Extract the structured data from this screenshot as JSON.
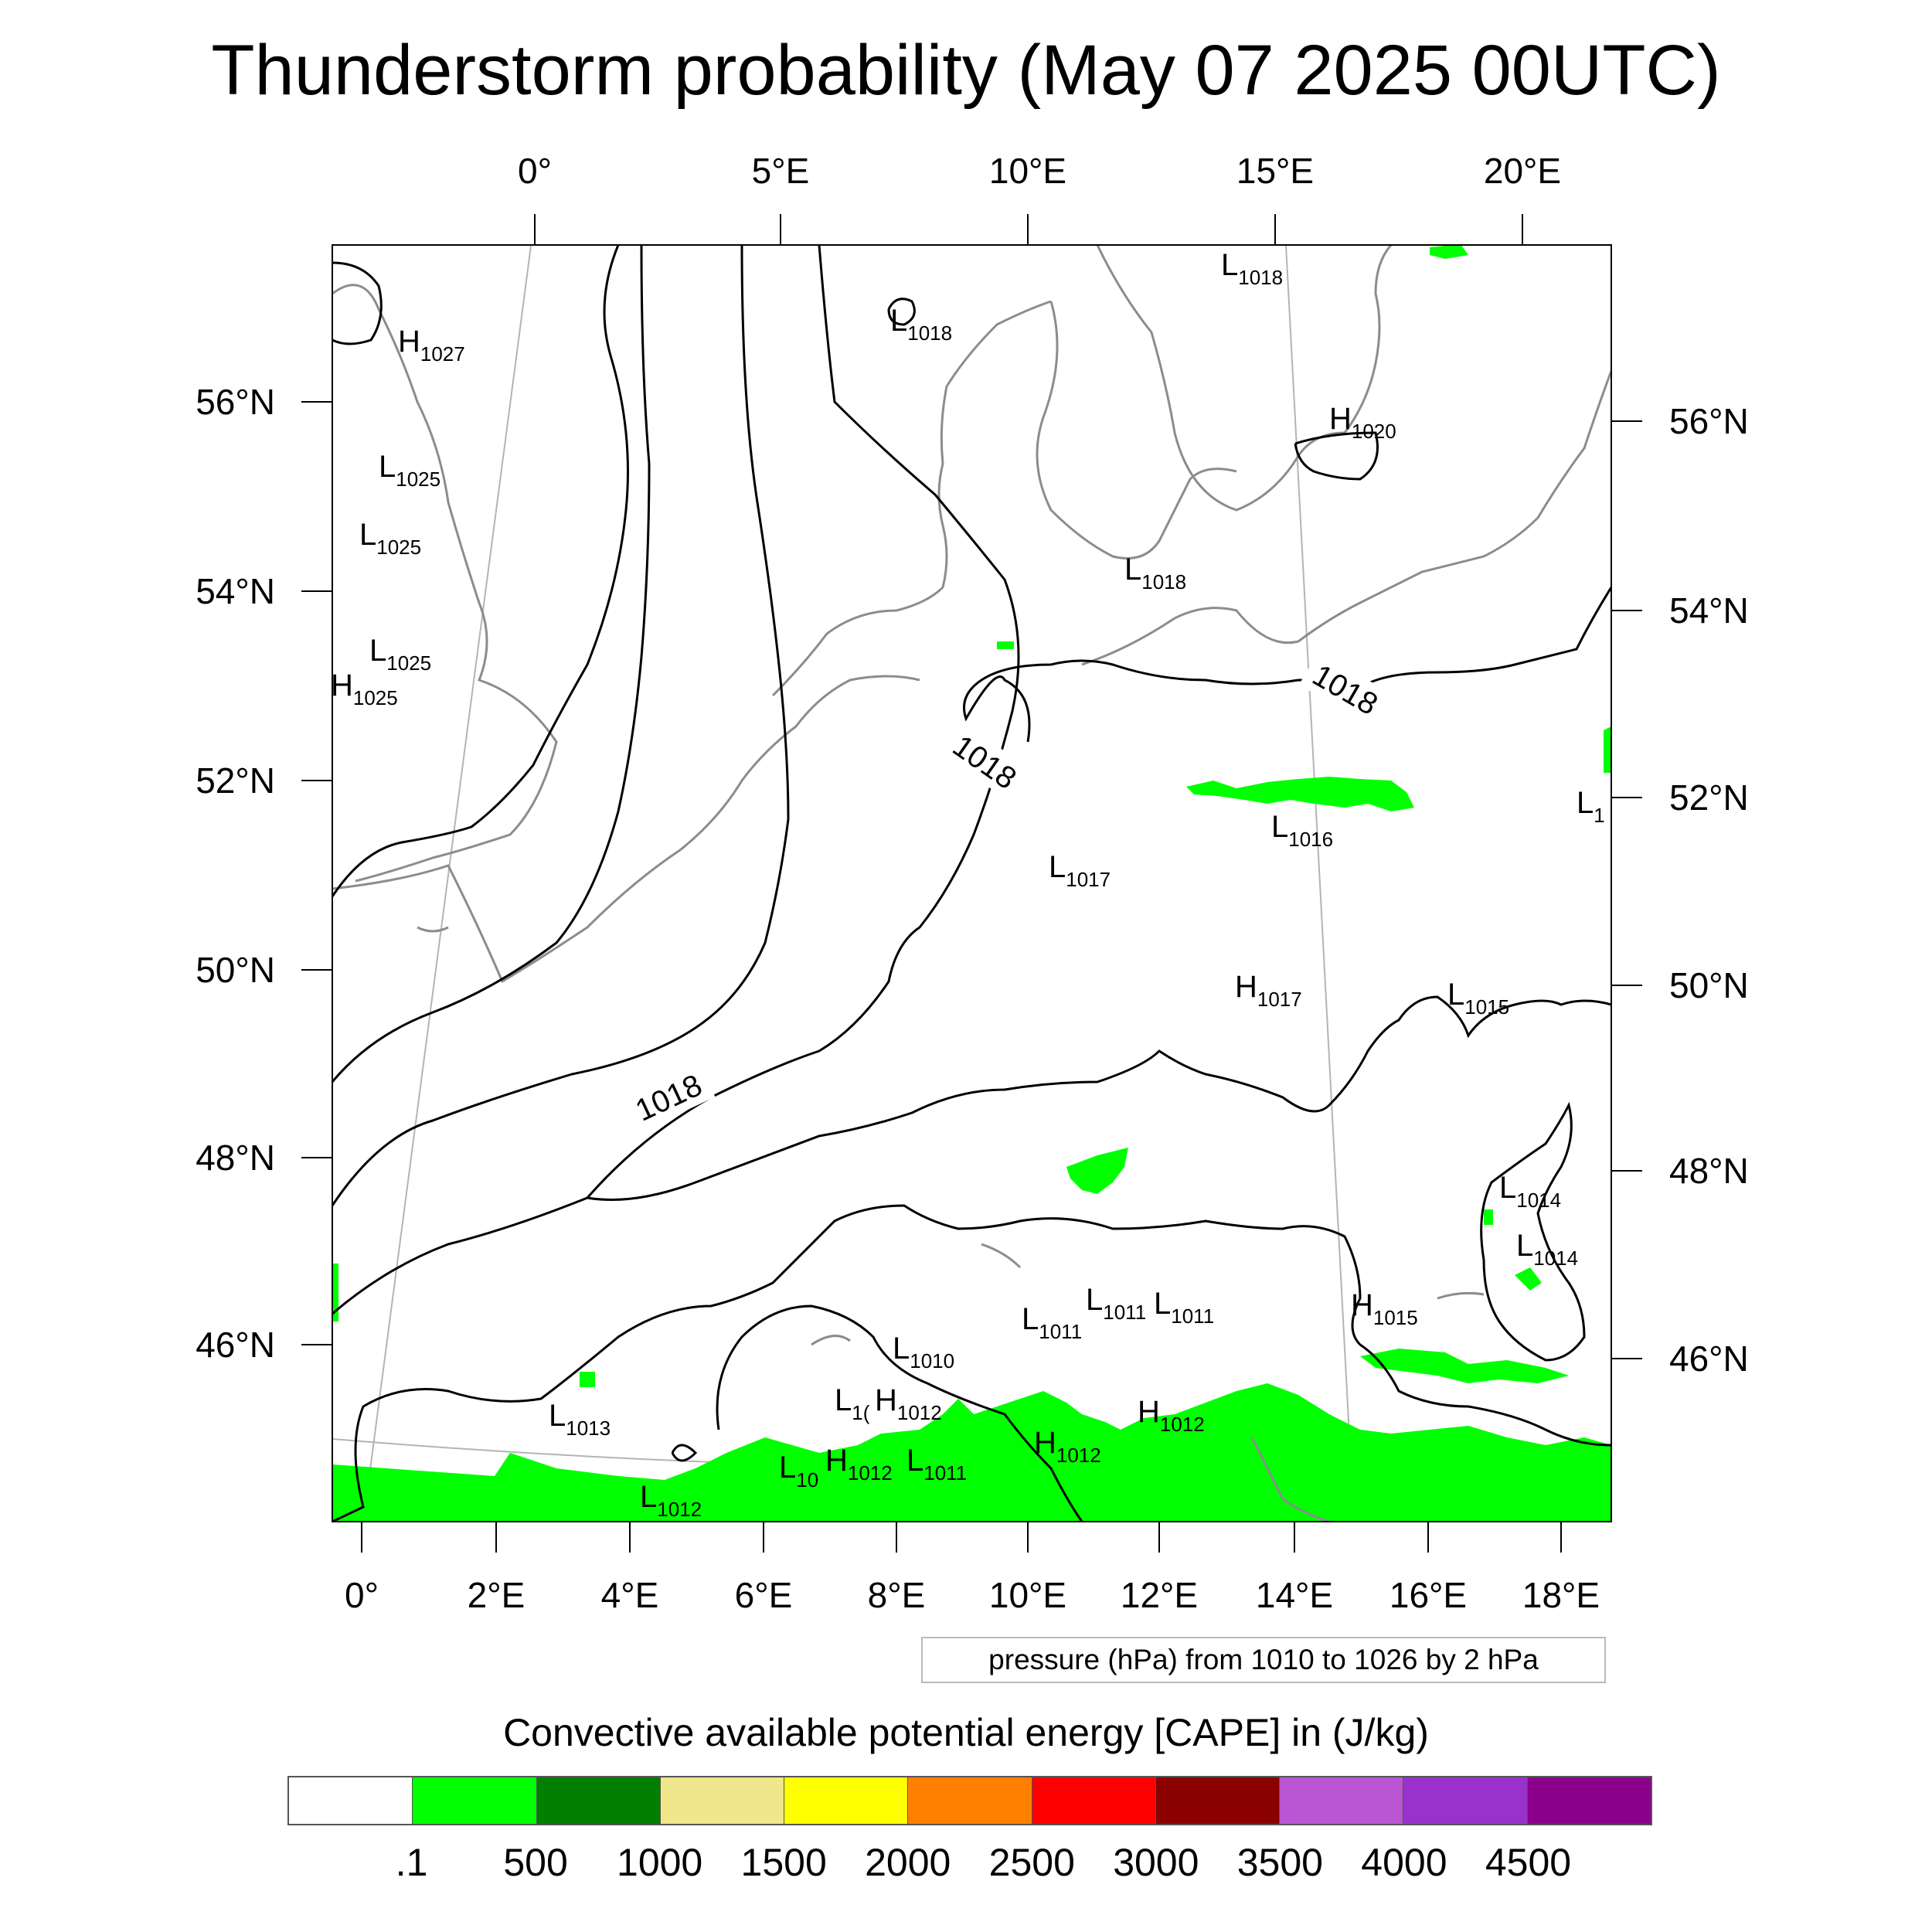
{
  "title": "Thunderstorm probability (May 07 2025 00UTC)",
  "top_axis_labels": [
    "0°",
    "5°E",
    "10°E",
    "15°E",
    "20°E"
  ],
  "bottom_axis_labels": [
    "0°",
    "2°E",
    "4°E",
    "6°E",
    "8°E",
    "10°E",
    "12°E",
    "14°E",
    "16°E",
    "18°E"
  ],
  "left_axis_labels": [
    "56°N",
    "54°N",
    "52°N",
    "50°N",
    "48°N",
    "46°N"
  ],
  "right_axis_labels": [
    "56°N",
    "54°N",
    "52°N",
    "50°N",
    "48°N",
    "46°N"
  ],
  "isobar_labels": [
    "1018",
    "1018",
    "1018"
  ],
  "pressure_centers": [
    {
      "type": "H",
      "value": "1027"
    },
    {
      "type": "L",
      "value": "1025"
    },
    {
      "type": "L",
      "value": "1025"
    },
    {
      "type": "L",
      "value": "1025"
    },
    {
      "type": "H",
      "value": "1025"
    },
    {
      "type": "L",
      "value": "1018"
    },
    {
      "type": "L",
      "value": "1018"
    },
    {
      "type": "H",
      "value": "1020"
    },
    {
      "type": "L",
      "value": "1018"
    },
    {
      "type": "L",
      "value": "1016"
    },
    {
      "type": "L",
      "value": "1017"
    },
    {
      "type": "H",
      "value": "1017"
    },
    {
      "type": "L",
      "value": "1015"
    },
    {
      "type": "L",
      "value": "1014"
    },
    {
      "type": "L",
      "value": "1014"
    },
    {
      "type": "L",
      "value": "1011"
    },
    {
      "type": "L",
      "value": "1011"
    },
    {
      "type": "L",
      "value": "1011"
    },
    {
      "type": "H",
      "value": "1015"
    },
    {
      "type": "L",
      "value": "1010"
    },
    {
      "type": "H",
      "value": "1012"
    },
    {
      "type": "H",
      "value": "1012"
    },
    {
      "type": "H",
      "value": "1012"
    },
    {
      "type": "L",
      "value": "1013"
    },
    {
      "type": "H",
      "value": "1012"
    },
    {
      "type": "L",
      "value": "1011"
    },
    {
      "type": "L",
      "value": "1012"
    },
    {
      "type": "L",
      "value": "1"
    },
    {
      "type": "L",
      "value": "1("
    },
    {
      "type": "L",
      "value": "10"
    }
  ],
  "pressure_note": "pressure (hPa) from 1010 to 1026 by 2 hPa",
  "cape_title": "Convective available potential energy [CAPE] in (J/kg)",
  "colorbar": {
    "colors": [
      "#ffffff",
      "#00ff00",
      "#007f00",
      "#f0e68c",
      "#ffff00",
      "#ff8000",
      "#ff0000",
      "#8b0000",
      "#ba55d3",
      "#9932cc",
      "#8b008b"
    ],
    "labels": [
      ".1",
      "500",
      "1000",
      "1500",
      "2000",
      "2500",
      "3000",
      "3500",
      "4000",
      "4500"
    ]
  },
  "map_colors": {
    "isobar": "#000000",
    "coastline": "#8c8c8c",
    "graticule": "#b4b4b4",
    "cape": "#00ff00"
  }
}
